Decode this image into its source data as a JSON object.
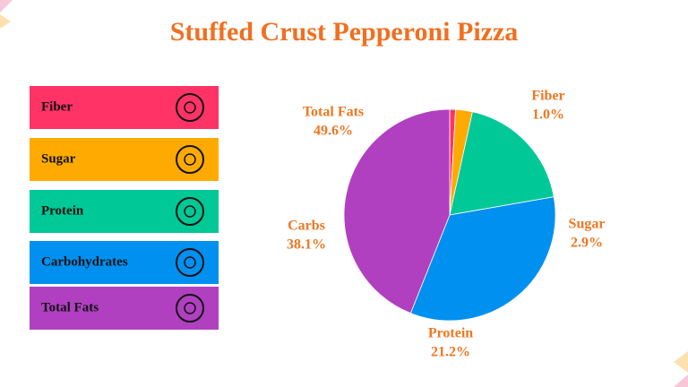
{
  "chart_data": {
    "type": "pie",
    "title": "Stuffed Crust Pepperoni Pizza",
    "categories": [
      "Fiber",
      "Sugar",
      "Protein",
      "Carbs",
      "Total Fats"
    ],
    "values": [
      1.0,
      2.9,
      21.2,
      38.1,
      49.6
    ],
    "value_labels": [
      "1.0%",
      "2.9%",
      "21.2%",
      "38.1%",
      "49.6%"
    ],
    "colors": [
      "#ff3366",
      "#ffaa00",
      "#00c896",
      "#0090f0",
      "#b040c0"
    ],
    "legend_items": [
      "Fiber",
      "Sugar",
      "Protein",
      "Carbohydrates",
      "Total Fats"
    ]
  }
}
